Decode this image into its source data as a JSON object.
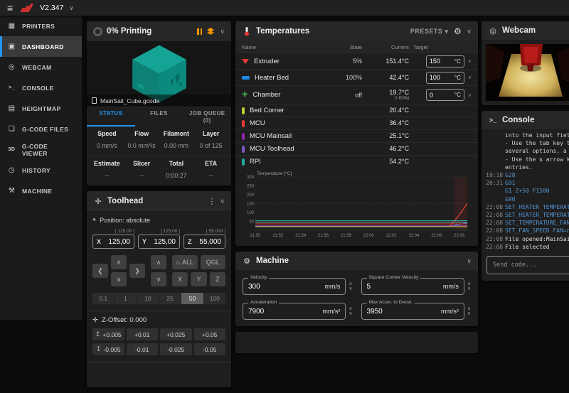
{
  "icons": {
    "hamburger": "≡",
    "caret_down": "∨",
    "caret_up": "∧",
    "caret_left": "❮",
    "caret_right": "❯",
    "dots": "⋮",
    "home": "⌂",
    "gear": "⚙",
    "presets_caret": "▾",
    "toolhead": "✛",
    "position": "⌖",
    "z_offset": "✛",
    "engine": "⚙",
    "arrow_up_bar": "↥",
    "arrow_down_bar": "↧",
    "webcam": "◎",
    "console": ">_"
  },
  "topbar": {
    "version": "V2.347"
  },
  "sidebar": {
    "items": [
      {
        "label": "PRINTERS",
        "icon": "▦"
      },
      {
        "label": "DASHBOARD",
        "icon": "▣"
      },
      {
        "label": "WEBCAM",
        "icon": "◎"
      },
      {
        "label": "CONSOLE",
        "icon": ">_"
      },
      {
        "label": "HEIGHTMAP",
        "icon": "▤"
      },
      {
        "label": "G-CODE FILES",
        "icon": "❏"
      },
      {
        "label": "G-CODE VIEWER",
        "icon": "3D"
      },
      {
        "label": "HISTORY",
        "icon": "◷"
      },
      {
        "label": "MACHINE",
        "icon": "⚒"
      }
    ]
  },
  "print_card": {
    "progress": "0%",
    "status": "Printing",
    "filename": "MainSail_Cube.gcode",
    "tabs": {
      "status": "STATUS",
      "files": "FILES",
      "job_queue": "JOB QUEUE",
      "job_queue_count": "(0)"
    },
    "stats": [
      {
        "label": "Speed",
        "value": "0 mm/s"
      },
      {
        "label": "Flow",
        "value": "0.0 mm³/s"
      },
      {
        "label": "Filament",
        "value": "0.00 mm"
      },
      {
        "label": "Layer",
        "value": "0 of 125"
      },
      {
        "label": "Estimate",
        "value": "--"
      },
      {
        "label": "Slicer",
        "value": "--"
      },
      {
        "label": "Total",
        "value": "0:00:27"
      },
      {
        "label": "ETA",
        "value": "--"
      }
    ]
  },
  "toolhead": {
    "title": "Toolhead",
    "position_label": "Position: absolute",
    "axes": [
      {
        "axis": "X",
        "limit": "[ 125.00 ]",
        "value": "125,00"
      },
      {
        "axis": "Y",
        "limit": "[ 125.00 ]",
        "value": "125,00"
      },
      {
        "axis": "Z",
        "limit": "[ 55.000 ]",
        "value": "55,000"
      }
    ],
    "home_all": "ALL",
    "qgl": "QGL",
    "axis_buttons": [
      "X",
      "Y",
      "Z"
    ],
    "steps": [
      "0.1",
      "1",
      "10",
      "25",
      "50",
      "100"
    ],
    "selected_step": "50",
    "z_offset_label": "Z-Offset: 0.000",
    "z_up": [
      "+0.005",
      "+0.01",
      "+0.025",
      "+0.05"
    ],
    "z_down": [
      "-0.005",
      "-0.01",
      "-0.025",
      "-0.05"
    ]
  },
  "temps": {
    "title": "Temperatures",
    "presets_label": "PRESETS",
    "columns": [
      "Name",
      "State",
      "Current",
      "Target"
    ],
    "heaters": [
      {
        "name": "Extruder",
        "state": "5%",
        "current": "151.4°C",
        "target": "150",
        "unit": "°C",
        "color": "#e53935"
      },
      {
        "name": "Heater Bed",
        "state": "100%",
        "current": "42.4°C",
        "target": "100",
        "unit": "°C",
        "color": "#1e88e5"
      },
      {
        "name": "Chamber",
        "state": "off",
        "current": "19.7°C",
        "current_sub": "0 RPM",
        "target": "0",
        "unit": "°C",
        "color": "#43a047"
      }
    ],
    "sensors": [
      {
        "name": "Bed Corner",
        "current": "20.4°C",
        "color": "#c0ca33"
      },
      {
        "name": "MCU",
        "current": "36.4°C",
        "color": "#e53935"
      },
      {
        "name": "MCU Mainsail",
        "current": "25.1°C",
        "color": "#8e24aa"
      },
      {
        "name": "MCU Toolhead",
        "current": "46.2°C",
        "color": "#7e57c2"
      },
      {
        "name": "RPI",
        "current": "54.2°C",
        "color": "#26a69a"
      }
    ]
  },
  "chart_data": {
    "type": "line",
    "title": "Temperature [°C]",
    "ylim": [
      0,
      300
    ],
    "y_ticks": [
      50,
      100,
      150,
      200,
      250,
      300
    ],
    "x_ticks": [
      "21:50",
      "21:52",
      "21:54",
      "21:56",
      "21:58",
      "22:00",
      "22:02",
      "22:04",
      "22:06",
      "22:08"
    ],
    "grid": true,
    "legend": "none",
    "highlight_region": {
      "from": 0.94,
      "to": 1.0,
      "color": "rgba(229,57,53,0.10)"
    },
    "series": [
      {
        "name": "Extruder",
        "color": "#f44336",
        "values": [
          23,
          23,
          23,
          23,
          23,
          23,
          23,
          23,
          23,
          23,
          23,
          23,
          23,
          23,
          23,
          23,
          23,
          23,
          23,
          23,
          23,
          23,
          23,
          80,
          151
        ]
      },
      {
        "name": "Heater Bed",
        "color": "#2196f3",
        "values": [
          23,
          23,
          23,
          23,
          23,
          23,
          23,
          23,
          23,
          23,
          23,
          23,
          23,
          23,
          23,
          23,
          23,
          23,
          23,
          23,
          23,
          23,
          23,
          32,
          42
        ]
      },
      {
        "name": "Chamber",
        "color": "#4caf50",
        "values": [
          20,
          20,
          20,
          20,
          20,
          20,
          20,
          20,
          20,
          20,
          20,
          20,
          20,
          20,
          20,
          20,
          20,
          20,
          20,
          20,
          20,
          20,
          20,
          20,
          20
        ]
      },
      {
        "name": "Bed Corner",
        "color": "#c0ca33",
        "values": [
          20,
          20,
          20,
          20,
          20,
          20,
          20,
          20,
          20,
          20,
          20,
          20,
          20,
          20,
          20,
          20,
          20,
          20,
          20,
          20,
          20,
          20,
          20,
          20,
          20
        ]
      },
      {
        "name": "MCU",
        "color": "#e53935",
        "values": [
          36,
          36,
          36,
          36,
          36,
          36,
          36,
          36,
          36,
          36,
          36,
          36,
          36,
          36,
          36,
          36,
          36,
          36,
          36,
          36,
          36,
          36,
          36,
          36,
          36
        ]
      },
      {
        "name": "MCU Mainsail",
        "color": "#ab47bc",
        "values": [
          25,
          25,
          25,
          25,
          25,
          25,
          25,
          25,
          25,
          25,
          25,
          25,
          25,
          25,
          25,
          25,
          25,
          25,
          25,
          25,
          25,
          25,
          25,
          25,
          25
        ]
      },
      {
        "name": "MCU Toolhead",
        "color": "#80cbc4",
        "values": [
          46,
          46,
          46,
          46,
          46,
          46,
          46,
          46,
          46,
          46,
          46,
          46,
          46,
          46,
          46,
          46,
          46,
          46,
          46,
          46,
          46,
          46,
          46,
          46,
          46
        ]
      },
      {
        "name": "RPI",
        "color": "#26a69a",
        "values": [
          54,
          54,
          54,
          54,
          54,
          54,
          54,
          54,
          54,
          54,
          54,
          54,
          54,
          54,
          54,
          54,
          54,
          54,
          54,
          54,
          54,
          54,
          54,
          54,
          54
        ]
      }
    ]
  },
  "machine": {
    "title": "Machine",
    "fields": [
      {
        "label": "Velocity",
        "value": "300",
        "unit": "mm/s"
      },
      {
        "label": "Square Corner Velocity",
        "value": "5",
        "unit": "mm/s"
      },
      {
        "label": "Acceleration",
        "value": "7900",
        "unit": "mm/s²"
      },
      {
        "label": "Max Accel. to Decel.",
        "value": "3950",
        "unit": "mm/s²"
      }
    ]
  },
  "webcam": {
    "title": "Webcam"
  },
  "console": {
    "title": "Console",
    "input_placeholder": "Send code...",
    "lines": [
      {
        "time": "",
        "text": "into the input field."
      },
      {
        "time": "",
        "text": "- Use the tab key to co"
      },
      {
        "time": "",
        "text": "several options, a list"
      },
      {
        "time": "",
        "text": "- Use the ⇅ arrow keys"
      },
      {
        "time": "",
        "text": "entries."
      },
      {
        "time": "19:18",
        "text": "G28"
      },
      {
        "time": "20:31",
        "text": "G91"
      },
      {
        "time": "",
        "text": "G1 Z+50 F1500"
      },
      {
        "time": "",
        "text": "G90"
      },
      {
        "time": "22:08",
        "text": "SET_HEATER_TEMPERATURE"
      },
      {
        "time": "22:08",
        "text": "SET_HEATER_TEMPERATURE"
      },
      {
        "time": "22:08",
        "text": "SET_TEMPERATURE_FAN_TA"
      },
      {
        "time": "22:08",
        "text": "SET_FAN_SPEED FAN=neve"
      },
      {
        "time": "22:08",
        "text": "File opened:MainSail_C"
      },
      {
        "time": "22:08",
        "text": "File selected"
      }
    ]
  },
  "colors": {
    "accent": "#2196f3",
    "warning": "#ff9800",
    "card": "#1e1e1e",
    "card_header": "#272727",
    "cube": "#0f9a8c"
  }
}
